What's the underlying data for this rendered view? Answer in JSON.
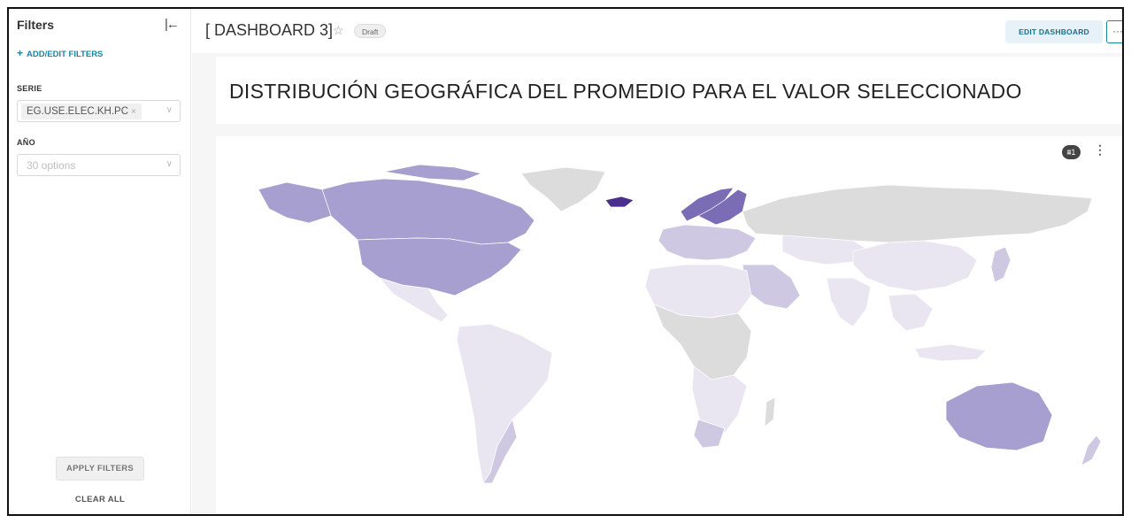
{
  "sidebar": {
    "title": "Filters",
    "add_filters": "ADD/EDIT FILTERS",
    "filters": [
      {
        "label": "SERIE",
        "value": "EG.USE.ELEC.KH.PC"
      },
      {
        "label": "AÑO",
        "placeholder": "30 options"
      }
    ],
    "apply_label": "APPLY FILTERS",
    "clear_label": "CLEAR ALL"
  },
  "header": {
    "title": "[ DASHBOARD 3]",
    "status_badge": "Draft",
    "edit_label": "EDIT DASHBOARD",
    "more_label": "···"
  },
  "chart_header": {
    "title": "DISTRIBUCIÓN GEOGRÁFICA DEL PROMEDIO PARA EL VALOR SELECCIONADO",
    "filter_badge": "1"
  },
  "colors": {
    "accent": "#1a85a0",
    "no_data": "#dcdcdc",
    "scale": [
      "#e9e6f2",
      "#cfc8e3",
      "#a79fcf",
      "#7a6cb5",
      "#4a2f8c"
    ]
  }
}
